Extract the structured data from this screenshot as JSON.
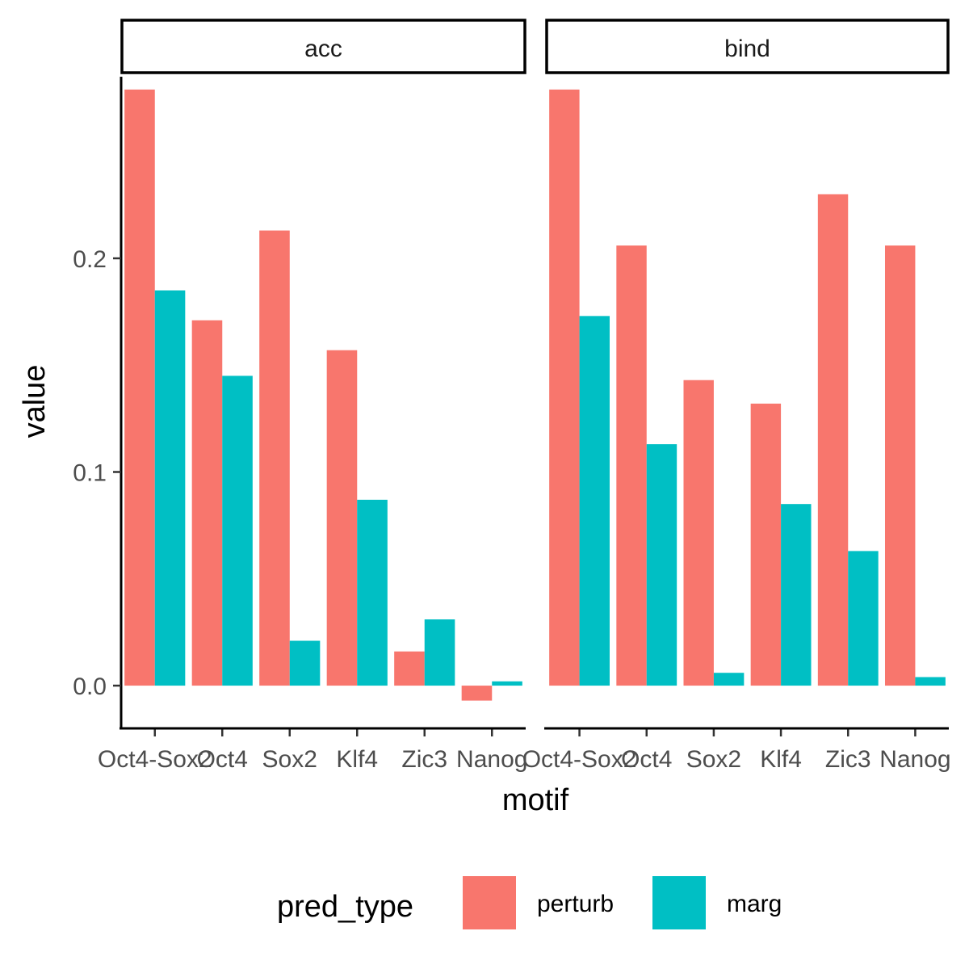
{
  "chart_data": {
    "type": "bar",
    "xlabel": "motif",
    "ylabel": "value",
    "categories": [
      "Oct4-Sox2",
      "Oct4",
      "Sox2",
      "Klf4",
      "Zic3",
      "Nanog"
    ],
    "y_ticks": [
      0.0,
      0.1,
      0.2
    ],
    "y_tick_labels": [
      "0.0",
      "0.1",
      "0.2"
    ],
    "ylim": [
      -0.02,
      0.285
    ],
    "grid": false,
    "legend": {
      "title": "pred_type",
      "position": "bottom",
      "entries": [
        {
          "label": "perturb",
          "color": "#F8766D"
        },
        {
          "label": "marg",
          "color": "#00BFC4"
        }
      ]
    },
    "panels": [
      {
        "strip": "acc",
        "series": [
          {
            "name": "perturb",
            "color": "#F8766D",
            "values": [
              0.279,
              0.171,
              0.213,
              0.157,
              0.016,
              -0.007
            ]
          },
          {
            "name": "marg",
            "color": "#00BFC4",
            "values": [
              0.185,
              0.145,
              0.021,
              0.087,
              0.031,
              0.002
            ]
          }
        ]
      },
      {
        "strip": "bind",
        "series": [
          {
            "name": "perturb",
            "color": "#F8766D",
            "values": [
              0.279,
              0.206,
              0.143,
              0.132,
              0.23,
              0.206
            ]
          },
          {
            "name": "marg",
            "color": "#00BFC4",
            "values": [
              0.173,
              0.113,
              0.006,
              0.085,
              0.063,
              0.004
            ]
          }
        ]
      }
    ]
  }
}
